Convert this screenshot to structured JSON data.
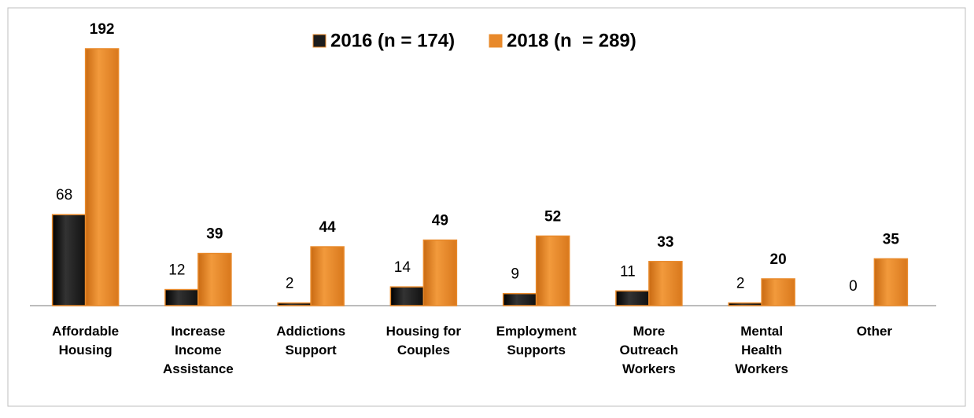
{
  "chart_data": {
    "type": "bar",
    "categories": [
      [
        "Affordable",
        "Housing"
      ],
      [
        "Increase",
        "Income",
        "Assistance"
      ],
      [
        "Addictions",
        "Support"
      ],
      [
        "Housing for",
        "Couples"
      ],
      [
        "Employment",
        "Supports"
      ],
      [
        "More",
        "Outreach",
        "Workers"
      ],
      [
        "Mental",
        "Health",
        "Workers"
      ],
      [
        "Other"
      ]
    ],
    "series": [
      {
        "name": "2016 (n = 174)",
        "color": "#1c1c1c",
        "values": [
          68,
          12,
          2,
          14,
          9,
          11,
          2,
          0
        ]
      },
      {
        "name": "2018 (n  = 289)",
        "color": "#e8892a",
        "values": [
          192,
          39,
          44,
          49,
          52,
          33,
          20,
          35
        ]
      }
    ],
    "legend": "top"
  }
}
